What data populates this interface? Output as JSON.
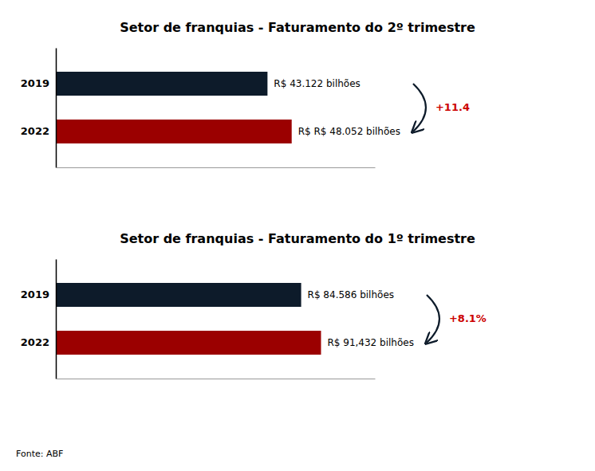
{
  "chart_data": [
    {
      "type": "bar",
      "orientation": "horizontal",
      "title": "Setor de franquias - Faturamento do 2º trimestre",
      "categories": [
        "2019",
        "2022"
      ],
      "values": [
        43.122,
        48.052
      ],
      "value_labels": [
        "R$ 43.122 bilhões",
        "R$ R$ 48.052 bilhões"
      ],
      "colors": [
        "#0d1b2a",
        "#9b0000"
      ],
      "data_labels": true,
      "xlim": [
        0,
        65
      ],
      "tick_labels": "y",
      "grid": false,
      "annotations": [
        {
          "text": "+11.4",
          "color": "#cc0000"
        }
      ]
    },
    {
      "type": "bar",
      "orientation": "horizontal",
      "title": "Setor de franquias - Faturamento do 1º trimestre",
      "categories": [
        "2019",
        "2022"
      ],
      "values": [
        84.586,
        91.432
      ],
      "value_labels": [
        "R$ 84.586 bilhões",
        "R$ 91,432 bilhões"
      ],
      "colors": [
        "#0d1b2a",
        "#9b0000"
      ],
      "data_labels": true,
      "xlim": [
        0,
        110
      ],
      "tick_labels": "y",
      "grid": false,
      "annotations": [
        {
          "text": "+8.1%",
          "color": "#cc0000"
        }
      ],
      "source": "Fonte: ABF"
    }
  ]
}
